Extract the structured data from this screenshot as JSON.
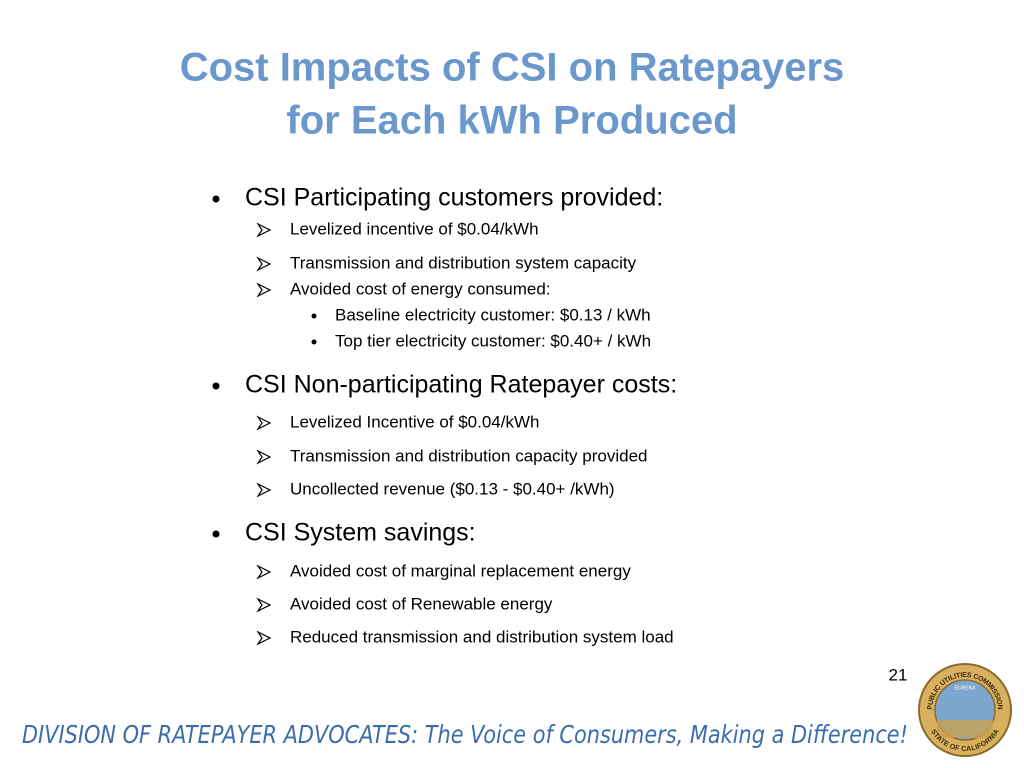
{
  "title": [
    "Cost Impacts of CSI on Ratepayers",
    "for Each kWh Produced"
  ],
  "sections": [
    {
      "heading": "CSI Participating customers provided:",
      "items": [
        {
          "text": "Levelized incentive of $0.04/kWh"
        },
        {
          "text": "Transmission and distribution system capacity"
        },
        {
          "text": "Avoided cost of energy consumed:",
          "sub": [
            "Baseline electricity customer: $0.13 / kWh",
            "Top tier electricity customer: $0.40+ / kWh"
          ]
        }
      ]
    },
    {
      "heading": "CSI Non-participating Ratepayer costs:",
      "items": [
        {
          "text": "Levelized Incentive of $0.04/kWh"
        },
        {
          "text": "Transmission and distribution capacity provided"
        },
        {
          "text": "Uncollected revenue ($0.13 - $0.40+ /kWh)"
        }
      ]
    },
    {
      "heading": "CSI System savings:",
      "items": [
        {
          "text": "Avoided cost of marginal replacement energy"
        },
        {
          "text": "Avoided cost of Renewable energy"
        },
        {
          "text": "Reduced transmission and distribution system load"
        }
      ]
    }
  ],
  "page_number": "21",
  "footer": {
    "org": "DIVISION OF RATEPAYER ADVOCATES:",
    "tagline": " The Voice of Consumers, Making a Difference!"
  },
  "seal": {
    "top": "PUBLIC UTILITIES COMMISSION",
    "bottom": "STATE OF CALIFORNIA",
    "motto": "EUREKA"
  }
}
